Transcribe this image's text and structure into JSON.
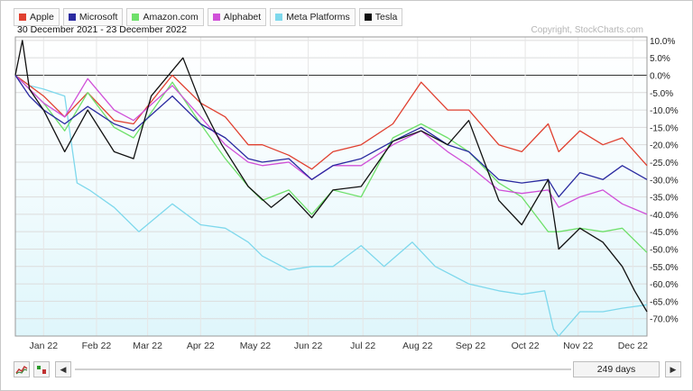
{
  "chart_data": {
    "type": "line",
    "title": "30 December 2021 - 23 December 2022",
    "copyright": "Copyright, StockCharts.com",
    "xlabel": "",
    "ylabel": "",
    "y_unit": "%",
    "ylim": [
      -75,
      11
    ],
    "x_range": [
      "2021-12-30",
      "2022-12-23"
    ],
    "y_ticks": [
      10,
      5,
      0,
      -5,
      -10,
      -15,
      -20,
      -25,
      -30,
      -35,
      -40,
      -45,
      -50,
      -55,
      -60,
      -65,
      -70
    ],
    "y_tick_labels": [
      "10.0%",
      "5.0%",
      "0.0%",
      "-5.0%",
      "-10.0%",
      "-15.0%",
      "-20.0%",
      "-25.0%",
      "-30.0%",
      "-35.0%",
      "-40.0%",
      "-45.0%",
      "-50.0%",
      "-55.0%",
      "-60.0%",
      "-65.0%",
      "-70.0%"
    ],
    "x_ticks": [
      {
        "label": "Jan 22",
        "date": "2022-01-15"
      },
      {
        "label": "Feb 22",
        "date": "2022-02-14"
      },
      {
        "label": "Mar 22",
        "date": "2022-03-15"
      },
      {
        "label": "Apr 22",
        "date": "2022-04-14"
      },
      {
        "label": "May 22",
        "date": "2022-05-15"
      },
      {
        "label": "Jun 22",
        "date": "2022-06-14"
      },
      {
        "label": "Jul 22",
        "date": "2022-07-15"
      },
      {
        "label": "Aug 22",
        "date": "2022-08-15"
      },
      {
        "label": "Sep 22",
        "date": "2022-09-14"
      },
      {
        "label": "Oct 22",
        "date": "2022-10-15"
      },
      {
        "label": "Nov 22",
        "date": "2022-11-14"
      },
      {
        "label": "Dec 22",
        "date": "2022-12-15"
      }
    ],
    "grid": true,
    "legend_position": "top-left",
    "series": [
      {
        "name": "Apple",
        "color": "#e04030",
        "x": [
          "2021-12-30",
          "2022-01-07",
          "2022-01-15",
          "2022-01-27",
          "2022-02-09",
          "2022-02-24",
          "2022-03-07",
          "2022-03-29",
          "2022-04-14",
          "2022-04-28",
          "2022-05-11",
          "2022-05-19",
          "2022-06-03",
          "2022-06-16",
          "2022-06-28",
          "2022-07-14",
          "2022-08-01",
          "2022-08-17",
          "2022-09-01",
          "2022-09-13",
          "2022-09-30",
          "2022-10-13",
          "2022-10-28",
          "2022-11-03",
          "2022-11-15",
          "2022-11-28",
          "2022-12-09",
          "2022-12-23"
        ],
        "y": [
          0,
          -3,
          -6,
          -12,
          -5,
          -13,
          -14,
          0,
          -8,
          -12,
          -20,
          -20,
          -23,
          -27,
          -22,
          -20,
          -14,
          -2,
          -10,
          -10,
          -20,
          -22,
          -14,
          -22,
          -16,
          -20,
          -18,
          -26
        ]
      },
      {
        "name": "Microsoft",
        "color": "#2a2aa0",
        "x": [
          "2021-12-30",
          "2022-01-07",
          "2022-01-15",
          "2022-01-27",
          "2022-02-09",
          "2022-02-24",
          "2022-03-07",
          "2022-03-29",
          "2022-04-14",
          "2022-04-28",
          "2022-05-11",
          "2022-05-19",
          "2022-06-03",
          "2022-06-16",
          "2022-06-28",
          "2022-07-14",
          "2022-08-01",
          "2022-08-17",
          "2022-09-01",
          "2022-09-13",
          "2022-09-30",
          "2022-10-13",
          "2022-10-28",
          "2022-11-03",
          "2022-11-15",
          "2022-11-28",
          "2022-12-09",
          "2022-12-23"
        ],
        "y": [
          0,
          -6,
          -10,
          -14,
          -9,
          -14,
          -16,
          -6,
          -14,
          -18,
          -24,
          -25,
          -24,
          -30,
          -26,
          -24,
          -19,
          -15,
          -20,
          -22,
          -30,
          -31,
          -30,
          -35,
          -28,
          -30,
          -26,
          -30
        ]
      },
      {
        "name": "Amazon.com",
        "color": "#6ee06a",
        "x": [
          "2021-12-30",
          "2022-01-07",
          "2022-01-15",
          "2022-01-27",
          "2022-02-09",
          "2022-02-24",
          "2022-03-07",
          "2022-03-29",
          "2022-04-14",
          "2022-04-28",
          "2022-05-11",
          "2022-05-19",
          "2022-06-03",
          "2022-06-16",
          "2022-06-28",
          "2022-07-14",
          "2022-08-01",
          "2022-08-17",
          "2022-09-01",
          "2022-09-13",
          "2022-09-30",
          "2022-10-13",
          "2022-10-28",
          "2022-11-03",
          "2022-11-15",
          "2022-11-28",
          "2022-12-09",
          "2022-12-23"
        ],
        "y": [
          0,
          -4,
          -8,
          -16,
          -5,
          -15,
          -18,
          -2,
          -14,
          -24,
          -32,
          -36,
          -33,
          -40,
          -33,
          -35,
          -18,
          -14,
          -18,
          -22,
          -31,
          -35,
          -45,
          -45,
          -44,
          -45,
          -44,
          -51
        ]
      },
      {
        "name": "Alphabet",
        "color": "#d050d8",
        "x": [
          "2021-12-30",
          "2022-01-07",
          "2022-01-15",
          "2022-01-27",
          "2022-02-09",
          "2022-02-24",
          "2022-03-07",
          "2022-03-29",
          "2022-04-14",
          "2022-04-28",
          "2022-05-11",
          "2022-05-19",
          "2022-06-03",
          "2022-06-16",
          "2022-06-28",
          "2022-07-14",
          "2022-08-01",
          "2022-08-17",
          "2022-09-01",
          "2022-09-13",
          "2022-09-30",
          "2022-10-13",
          "2022-10-28",
          "2022-11-03",
          "2022-11-15",
          "2022-11-28",
          "2022-12-09",
          "2022-12-23"
        ],
        "y": [
          0,
          -4,
          -8,
          -12,
          -1,
          -10,
          -13,
          -3,
          -12,
          -20,
          -25,
          -26,
          -25,
          -30,
          -26,
          -26,
          -20,
          -16,
          -22,
          -26,
          -33,
          -34,
          -33,
          -38,
          -35,
          -33,
          -37,
          -40
        ]
      },
      {
        "name": "Meta Platforms",
        "color": "#7ed8ec",
        "x": [
          "2021-12-30",
          "2022-01-07",
          "2022-01-15",
          "2022-01-27",
          "2022-02-03",
          "2022-02-10",
          "2022-02-24",
          "2022-03-10",
          "2022-03-29",
          "2022-04-14",
          "2022-04-28",
          "2022-05-11",
          "2022-05-19",
          "2022-06-03",
          "2022-06-16",
          "2022-06-28",
          "2022-07-14",
          "2022-07-27",
          "2022-08-12",
          "2022-08-25",
          "2022-09-13",
          "2022-09-30",
          "2022-10-13",
          "2022-10-26",
          "2022-10-31",
          "2022-11-03",
          "2022-11-15",
          "2022-11-28",
          "2022-12-09",
          "2022-12-23"
        ],
        "y": [
          0,
          -3,
          -4,
          -6,
          -31,
          -33,
          -38,
          -45,
          -37,
          -43,
          -44,
          -48,
          -52,
          -56,
          -55,
          -55,
          -49,
          -55,
          -48,
          -55,
          -60,
          -62,
          -63,
          -62,
          -73,
          -75,
          -68,
          -68,
          -67,
          -66
        ]
      },
      {
        "name": "Tesla",
        "color": "#111111",
        "x": [
          "2021-12-30",
          "2022-01-03",
          "2022-01-07",
          "2022-01-15",
          "2022-01-27",
          "2022-02-09",
          "2022-02-24",
          "2022-03-07",
          "2022-03-17",
          "2022-04-04",
          "2022-04-14",
          "2022-04-26",
          "2022-05-11",
          "2022-05-24",
          "2022-06-03",
          "2022-06-16",
          "2022-06-28",
          "2022-07-14",
          "2022-08-01",
          "2022-08-17",
          "2022-09-01",
          "2022-09-13",
          "2022-09-30",
          "2022-10-13",
          "2022-10-28",
          "2022-11-03",
          "2022-11-15",
          "2022-11-28",
          "2022-12-09",
          "2022-12-16",
          "2022-12-23"
        ],
        "y": [
          0,
          10,
          -4,
          -10,
          -22,
          -10,
          -22,
          -24,
          -6,
          5,
          -8,
          -20,
          -32,
          -38,
          -34,
          -41,
          -33,
          -32,
          -19,
          -16,
          -20,
          -13,
          -36,
          -43,
          -30,
          -50,
          -44,
          -48,
          -55,
          -62,
          -68
        ]
      }
    ]
  },
  "toolbar": {
    "days_label": "249 days",
    "left_arrow": "◀",
    "right_arrow": "▶"
  }
}
